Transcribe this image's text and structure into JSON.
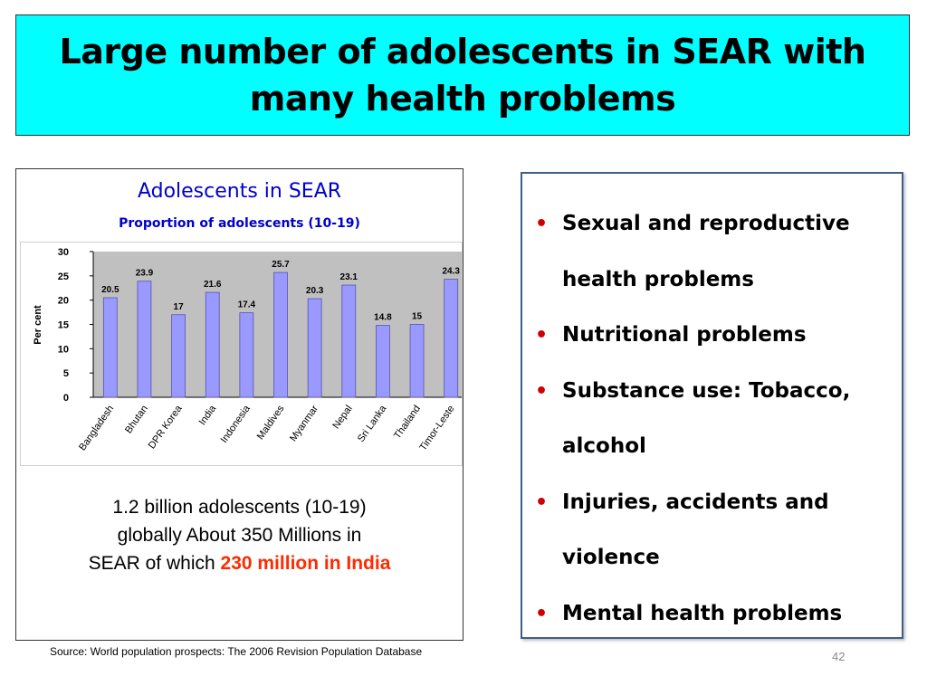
{
  "slide": {
    "title_line1": "Large number of adolescents in SEAR with",
    "title_line2": "many health problems",
    "summary_part1": "1.2 billion adolescents (10-19)",
    "summary_part2": "globally   About 350 Millions in",
    "summary_part3": "SEAR of which",
    "summary_highlight": "230 million in India",
    "source": "Source: World population prospects: The 2006 Revision Population Database",
    "page_number": "42"
  },
  "bullets": [
    {
      "text": "Sexual and reproductive health problems"
    },
    {
      "text": "Nutritional problems"
    },
    {
      "text": "Substance use: Tobacco, alcohol"
    },
    {
      "text": "Injuries, accidents and violence"
    },
    {
      "text": "Mental health problems"
    }
  ],
  "bullet_glyph": "•",
  "colors": {
    "title_bg": "#00ffff",
    "chart_title": "#0000cc",
    "bar_fill": "#9999ff",
    "plot_bg": "#c0c0c0",
    "highlight": "#ff2a00",
    "bullet": "#cc0000"
  },
  "chart_data": {
    "type": "bar",
    "title": "Adolescents in SEAR",
    "subtitle": "Proportion of adolescents (10-19)",
    "xlabel": "",
    "ylabel": "Per cent",
    "categories": [
      "Bangladesh",
      "Bhutan",
      "DPR Korea",
      "India",
      "Indonesia",
      "Maldives",
      "Myanmar",
      "Nepal",
      "Sri Lanka",
      "Thailand",
      "Timor-Leste"
    ],
    "values": [
      20.5,
      23.9,
      17,
      21.6,
      17.4,
      25.7,
      20.3,
      23.1,
      14.8,
      15,
      24.3
    ],
    "value_labels": [
      "20.5",
      "23.9",
      "17",
      "21.6",
      "17.4",
      "25.7",
      "20.3",
      "23.1",
      "14.8",
      "15",
      "24.3"
    ],
    "ylim": [
      0,
      30
    ],
    "yticks": [
      "0",
      "5",
      "10",
      "15",
      "20",
      "25",
      "30"
    ],
    "grid": false,
    "legend": "none"
  }
}
